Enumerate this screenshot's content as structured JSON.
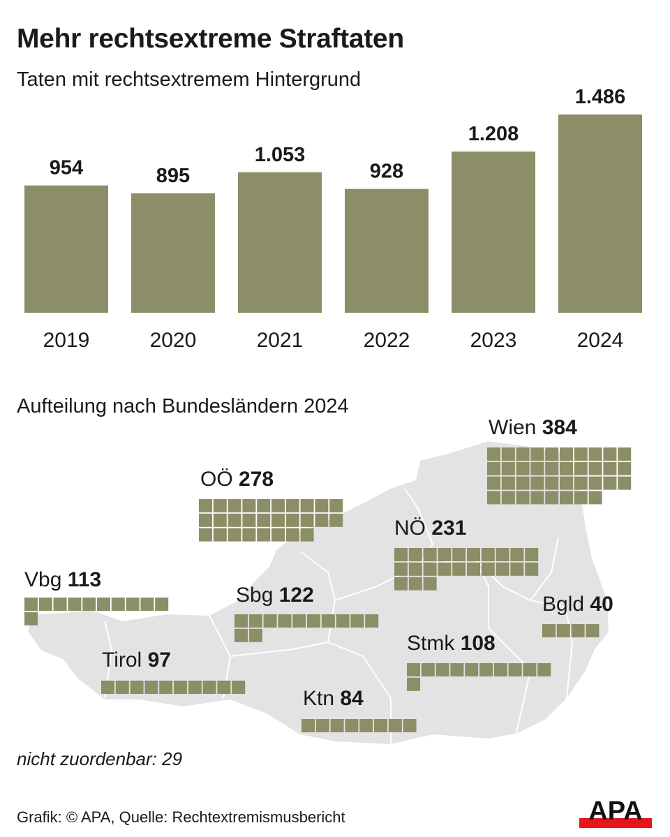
{
  "title": "Mehr rechtsextreme Straftaten",
  "subtitle": "Taten mit rechtsextremem Hintergrund",
  "colors": {
    "bar": "#8b8e66",
    "map": "#e3e3e3",
    "logo_red": "#e3171b"
  },
  "chart_data": [
    {
      "type": "bar",
      "title": "Taten mit rechtsextremem Hintergrund",
      "categories": [
        "2019",
        "2020",
        "2021",
        "2022",
        "2023",
        "2024"
      ],
      "values": [
        954,
        895,
        1053,
        928,
        1208,
        1486
      ],
      "value_labels": [
        "954",
        "895",
        "1.053",
        "928",
        "1.208",
        "1.486"
      ],
      "xlabel": "",
      "ylabel": "",
      "ylim": [
        0,
        1486
      ],
      "grid": false
    },
    {
      "type": "waffle-map",
      "title": "Aufteilung nach Bundesländern 2024",
      "unit_per_square": 10,
      "categories": [
        "Wien",
        "OÖ",
        "NÖ",
        "Vbg",
        "Sbg",
        "Bgld",
        "Stmk",
        "Tirol",
        "Ktn"
      ],
      "values": [
        384,
        278,
        231,
        113,
        122,
        40,
        108,
        97,
        84
      ]
    }
  ],
  "unassigned": {
    "label": "nicht zuordenbar:",
    "value": "29"
  },
  "source": "Grafik: © APA, Quelle: Rechtextremismusbericht",
  "logo": "APA"
}
